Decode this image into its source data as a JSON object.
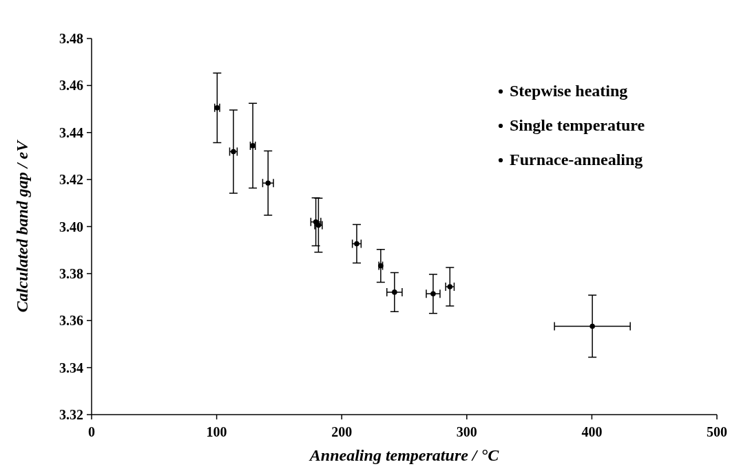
{
  "chart_data": {
    "type": "scatter",
    "xlabel": "Annealing temperature / °C",
    "ylabel": "Calculated band gap / eV",
    "xlim": [
      0,
      500
    ],
    "xticks": [
      0,
      100,
      200,
      300,
      400,
      500
    ],
    "ylim": [
      3.32,
      3.48
    ],
    "yticks": [
      {
        "value": 3.32,
        "label": "3.32"
      },
      {
        "value": 3.34,
        "label": "3.34"
      },
      {
        "value": 3.36,
        "label": "3.36"
      },
      {
        "value": 3.38,
        "label": "3.38"
      },
      {
        "value": 3.4,
        "label": "3.40"
      },
      {
        "value": 3.42,
        "label": "3.42"
      },
      {
        "value": 3.44,
        "label": "3.44"
      },
      {
        "value": 3.46,
        "label": "3.46"
      },
      {
        "value": 3.48,
        "label": "3.48"
      }
    ],
    "grid": false,
    "legend": "top right",
    "marker": "circle",
    "series": [
      {
        "name": "Stepwise heating",
        "color": "#000000",
        "x": [
          100.4,
          113.4,
          128.9,
          179.3,
          212,
          231.2,
          286.5
        ],
        "values": [
          3.4505,
          3.4319,
          3.4344,
          3.402,
          3.3927,
          3.3833,
          3.3744
        ],
        "errors": [
          0.0148,
          0.0177,
          0.018,
          0.0102,
          0.0082,
          0.007,
          0.0082
        ],
        "xerrors": [
          2,
          3,
          2,
          4,
          3.5,
          1.5,
          3.4
        ]
      },
      {
        "name": "Single temperature",
        "color": "#000000",
        "x": [
          141.1,
          181.4,
          242.2,
          273.1
        ],
        "values": [
          3.4185,
          3.4006,
          3.3721,
          3.3714
        ],
        "errors": [
          0.0137,
          0.0115,
          0.0083,
          0.0083
        ],
        "xerrors": [
          4.3,
          3,
          6.1,
          5.5
        ]
      },
      {
        "name": "Furnace-annealing",
        "color": "#000000",
        "x": [
          400.4
        ],
        "values": [
          3.3576
        ],
        "errors": [
          0.0132
        ],
        "xerrors": [
          30.3
        ]
      }
    ]
  }
}
